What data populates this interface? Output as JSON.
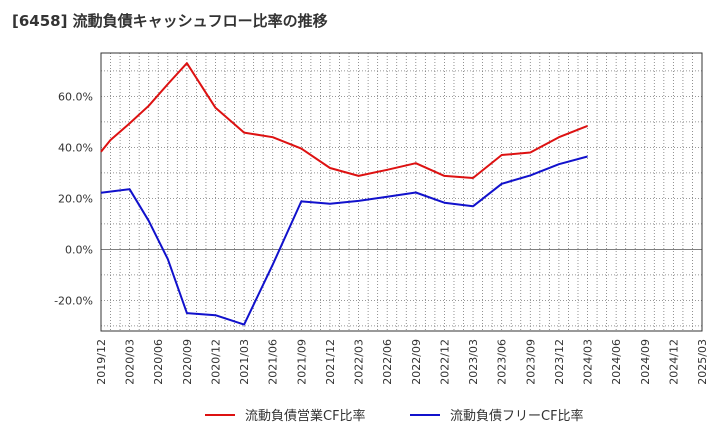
{
  "chart_data": {
    "type": "line",
    "title": "[6458]  流動負債キャッシュフロー比率の推移",
    "xlabel": "",
    "ylabel": "",
    "x": [
      "2019/12",
      "2020/03",
      "2020/06",
      "2020/09",
      "2020/12",
      "2021/03",
      "2021/06",
      "2021/09",
      "2021/12",
      "2022/03",
      "2022/06",
      "2022/09",
      "2022/12",
      "2023/03",
      "2023/06",
      "2023/09",
      "2023/12",
      "2024/03",
      "2024/06",
      "2024/09",
      "2024/12",
      "2025/03"
    ],
    "ylim": [
      -32,
      77
    ],
    "yticks": [
      {
        "value": -20,
        "label": "-20.0%"
      },
      {
        "value": 0,
        "label": "0.0%"
      },
      {
        "value": 20,
        "label": "20.0%"
      },
      {
        "value": 40,
        "label": "40.0%"
      },
      {
        "value": 60,
        "label": "60.0%"
      }
    ],
    "grid": true,
    "legend_position": "bottom",
    "series": [
      {
        "name": "流動負債営業CF比率",
        "color": "#dd1111",
        "points": [
          [
            "2019/12",
            38.3
          ],
          [
            "2020/01",
            42.9
          ],
          [
            "2020/03",
            49.4
          ],
          [
            "2020/05",
            56.3
          ],
          [
            "2020/07",
            64.8
          ],
          [
            "2020/09",
            73.0
          ],
          [
            "2020/12",
            55.5
          ],
          [
            "2021/03",
            45.8
          ],
          [
            "2021/06",
            44.0
          ],
          [
            "2021/09",
            39.5
          ],
          [
            "2021/12",
            31.9
          ],
          [
            "2022/03",
            28.8
          ],
          [
            "2022/06",
            31.2
          ],
          [
            "2022/09",
            33.8
          ],
          [
            "2022/12",
            28.8
          ],
          [
            "2023/03",
            28.0
          ],
          [
            "2023/06",
            37.0
          ],
          [
            "2023/09",
            38.0
          ],
          [
            "2023/12",
            44.0
          ],
          [
            "2024/03",
            48.4
          ]
        ]
      },
      {
        "name": "流動負債フリーCF比率",
        "color": "#1111cc",
        "points": [
          [
            "2019/12",
            22.2
          ],
          [
            "2020/03",
            23.6
          ],
          [
            "2020/05",
            11.2
          ],
          [
            "2020/07",
            -3.8
          ],
          [
            "2020/09",
            -25.0
          ],
          [
            "2020/12",
            -25.8
          ],
          [
            "2021/03",
            -29.5
          ],
          [
            "2021/06",
            -6.0
          ],
          [
            "2021/09",
            18.8
          ],
          [
            "2021/12",
            17.9
          ],
          [
            "2022/03",
            19.0
          ],
          [
            "2022/06",
            20.6
          ],
          [
            "2022/09",
            22.3
          ],
          [
            "2022/12",
            18.3
          ],
          [
            "2023/03",
            16.9
          ],
          [
            "2023/06",
            25.7
          ],
          [
            "2023/09",
            29.0
          ],
          [
            "2023/12",
            33.4
          ],
          [
            "2024/03",
            36.4
          ]
        ]
      }
    ]
  }
}
